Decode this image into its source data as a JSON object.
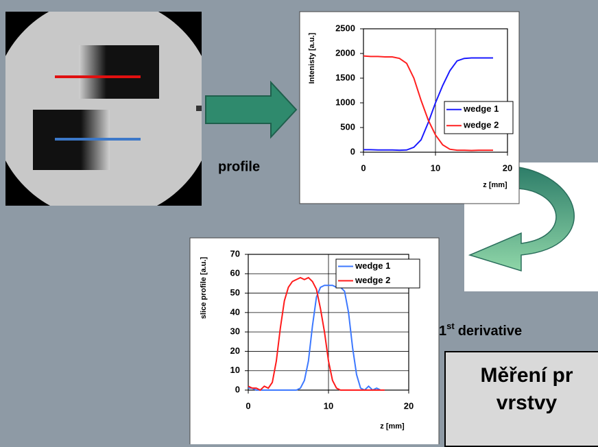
{
  "chart_data": [
    {
      "type": "line",
      "ylabel": "Intenisty [a.u.]",
      "xlabel": "z [mm]",
      "x": [
        0,
        1,
        2,
        3,
        4,
        5,
        6,
        7,
        8,
        9,
        10,
        11,
        12,
        13,
        14,
        15,
        16,
        17,
        18
      ],
      "series": [
        {
          "name": "wedge 1",
          "color": "#1a1aff",
          "values": [
            50,
            50,
            45,
            45,
            45,
            40,
            45,
            100,
            250,
            600,
            1000,
            1350,
            1650,
            1850,
            1900,
            1910,
            1910,
            1910,
            1910
          ]
        },
        {
          "name": "wedge 2",
          "color": "#ff2020",
          "values": [
            1950,
            1940,
            1940,
            1930,
            1930,
            1900,
            1800,
            1500,
            1050,
            650,
            350,
            150,
            60,
            40,
            40,
            35,
            40,
            40,
            40
          ]
        }
      ],
      "xlim": [
        0,
        20
      ],
      "xticks": [
        0,
        10,
        20
      ],
      "ylim": [
        0,
        2500
      ],
      "yticks": [
        0,
        500,
        1000,
        1500,
        2000,
        2500
      ],
      "grid": "x",
      "legend": "lower right"
    },
    {
      "type": "line",
      "ylabel": "slice profile [a.u.]",
      "xlabel": "z [mm]",
      "x": [
        0,
        0.5,
        1,
        1.5,
        2,
        2.5,
        3,
        3.5,
        4,
        4.5,
        5,
        5.5,
        6,
        6.5,
        7,
        7.5,
        8,
        8.5,
        9,
        9.5,
        10,
        10.5,
        11,
        11.5,
        12,
        12.5,
        13,
        13.5,
        14,
        14.5,
        15,
        15.5,
        16,
        16.5,
        17
      ],
      "series": [
        {
          "name": "wedge 1",
          "color": "#3c78ff",
          "values": [
            1,
            1,
            0,
            0,
            0,
            0,
            0,
            0,
            0,
            0,
            0,
            0,
            0,
            1,
            5,
            15,
            33,
            48,
            53,
            54,
            54,
            54,
            53,
            53,
            51,
            40,
            22,
            8,
            1,
            0,
            2,
            0,
            1,
            0,
            0
          ]
        },
        {
          "name": "wedge 2",
          "color": "#ff1a1a",
          "values": [
            2,
            1,
            1,
            0,
            2,
            1,
            4,
            15,
            32,
            46,
            53,
            56,
            57,
            58,
            57,
            58,
            56,
            52,
            42,
            30,
            15,
            5,
            1,
            0,
            0,
            0,
            0,
            0,
            0,
            0,
            0,
            0,
            0,
            0,
            0
          ]
        }
      ],
      "xlim": [
        0,
        20
      ],
      "xticks": [
        0,
        10,
        20
      ],
      "ylim": [
        0,
        70
      ],
      "yticks": [
        0,
        10,
        20,
        30,
        40,
        50,
        60,
        70
      ],
      "grid": "both",
      "legend": "upper right"
    }
  ],
  "labels": {
    "profile": "profile",
    "derivative_number": "1",
    "derivative_suffix": "st",
    "derivative_text": "derivative",
    "box_line1": "Měření pr",
    "box_line2": "vrstvy"
  }
}
